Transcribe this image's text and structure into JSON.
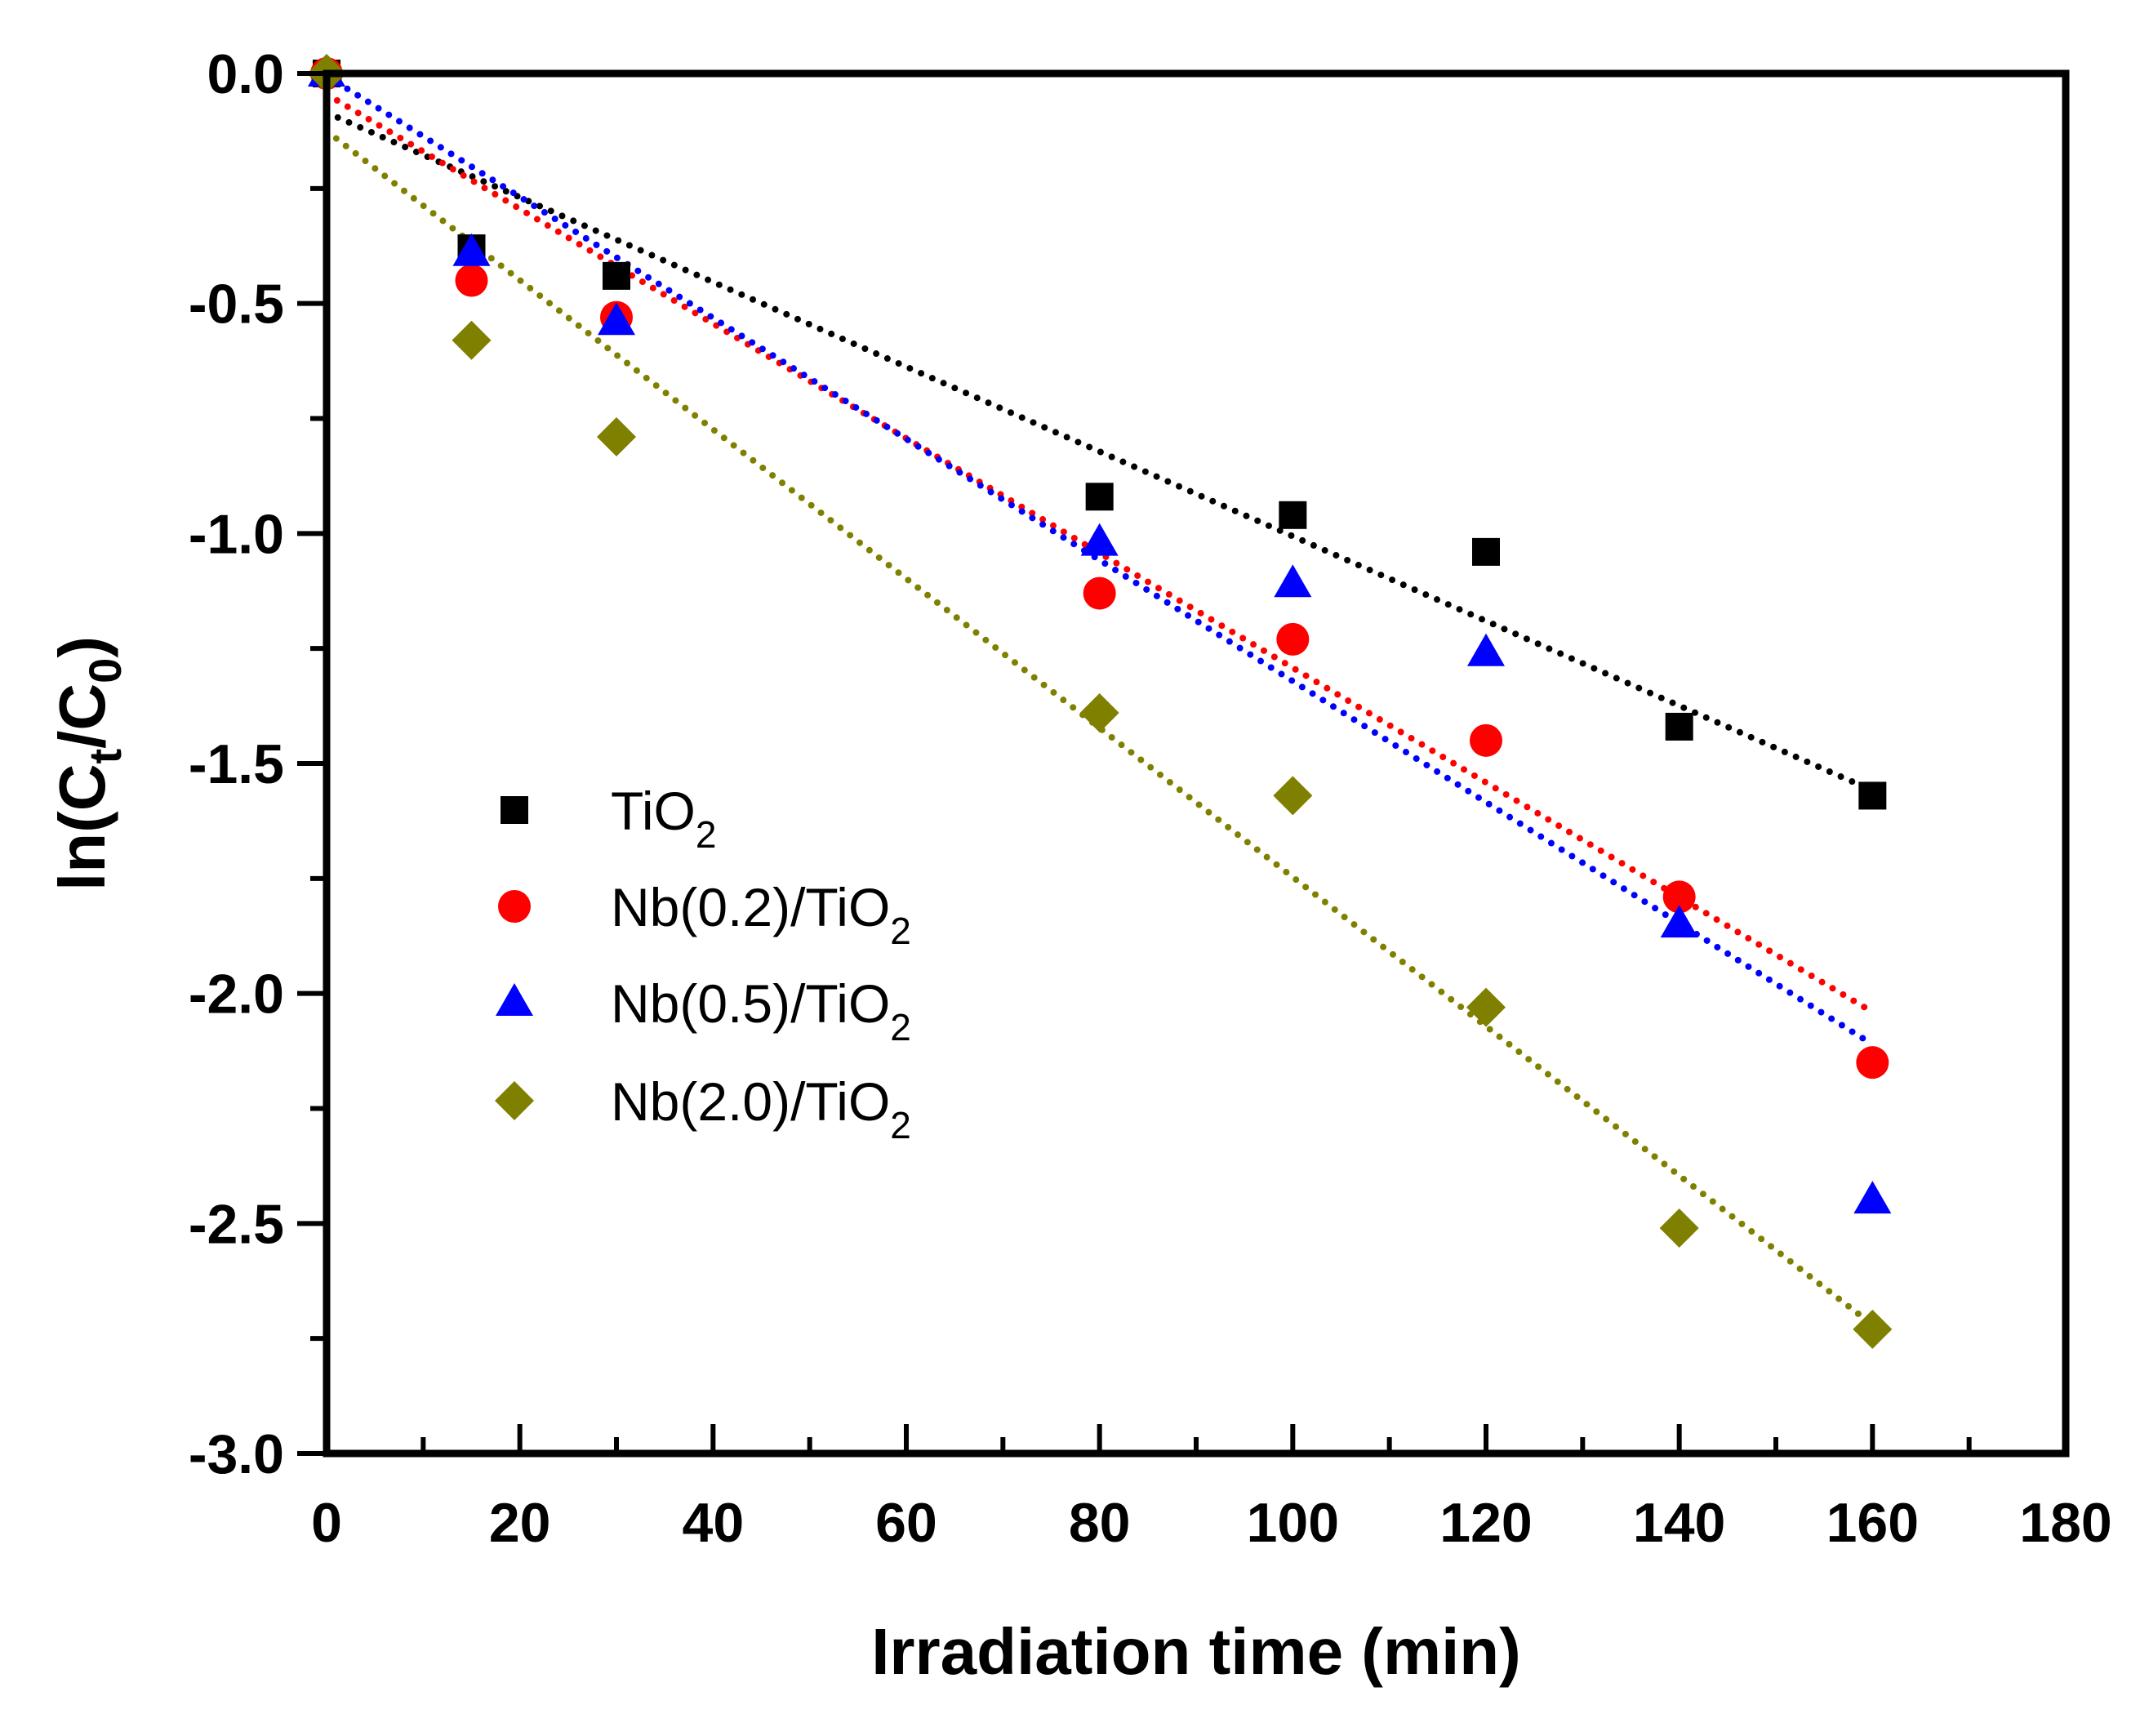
{
  "chart_data": {
    "type": "scatter",
    "title": "",
    "xlabel": "Irradiation time (min)",
    "ylabel_parts": [
      "ln(C",
      "t",
      "/C",
      "0",
      ")"
    ],
    "xlim": [
      0,
      180
    ],
    "ylim": [
      -3.0,
      0.0
    ],
    "x_ticks": [
      0,
      20,
      40,
      60,
      80,
      100,
      120,
      140,
      160,
      180
    ],
    "x_tick_labels": [
      "0",
      "20",
      "40",
      "60",
      "80",
      "100",
      "120",
      "140",
      "160",
      "180"
    ],
    "y_ticks": [
      0.0,
      -0.5,
      -1.0,
      -1.5,
      -2.0,
      -2.5,
      -3.0
    ],
    "y_tick_labels": [
      "0.0",
      "-0.5",
      "-1.0",
      "-1.5",
      "-2.0",
      "-2.5",
      "-3.0"
    ],
    "x_minor_step": 10,
    "y_minor_step": 0.25,
    "grid": false,
    "legend_position": "center-left",
    "series": [
      {
        "name": "TiO2",
        "label_main": "TiO",
        "label_sub": "2",
        "marker": "square",
        "color": "#000000",
        "x": [
          0,
          15,
          30,
          80,
          100,
          120,
          140,
          160
        ],
        "y": [
          0.0,
          -0.38,
          -0.44,
          -0.92,
          -0.96,
          -1.04,
          -1.42,
          -1.57
        ],
        "fit": {
          "slope": -0.00921,
          "intercept": -0.085,
          "x_range": [
            0,
            160
          ]
        }
      },
      {
        "name": "Nb(0.2)/TiO2",
        "label_main": "Nb(0.2)/TiO",
        "label_sub": "2",
        "marker": "circle",
        "color": "#ff0000",
        "x": [
          0,
          15,
          30,
          80,
          100,
          120,
          140,
          160
        ],
        "y": [
          0.0,
          -0.45,
          -0.53,
          -1.13,
          -1.23,
          -1.45,
          -1.79,
          -2.15
        ],
        "fit": {
          "slope": -0.01247,
          "intercept": -0.045,
          "x_range": [
            0,
            160
          ]
        }
      },
      {
        "name": "Nb(0.5)/TiO2",
        "label_main": "Nb(0.5)/TiO",
        "label_sub": "2",
        "marker": "triangle",
        "color": "#0000ff",
        "x": [
          0,
          15,
          30,
          80,
          100,
          120,
          140,
          160
        ],
        "y": [
          0.0,
          -0.39,
          -0.54,
          -1.02,
          -1.11,
          -1.26,
          -1.85,
          -2.45
        ],
        "fit": {
          "slope": -0.01316,
          "intercept": -0.005,
          "x_range": [
            0,
            160
          ]
        }
      },
      {
        "name": "Nb(2.0)/TiO2",
        "label_main": "Nb(2.0)/TiO",
        "label_sub": "2",
        "marker": "diamond",
        "color": "#808000",
        "x": [
          0,
          15,
          30,
          80,
          100,
          120,
          140,
          160
        ],
        "y": [
          0.0,
          -0.58,
          -0.79,
          -1.39,
          -1.57,
          -2.03,
          -2.51,
          -2.73
        ],
        "fit": {
          "slope": -0.01622,
          "intercept": -0.125,
          "x_range": [
            0,
            160
          ]
        }
      }
    ]
  }
}
